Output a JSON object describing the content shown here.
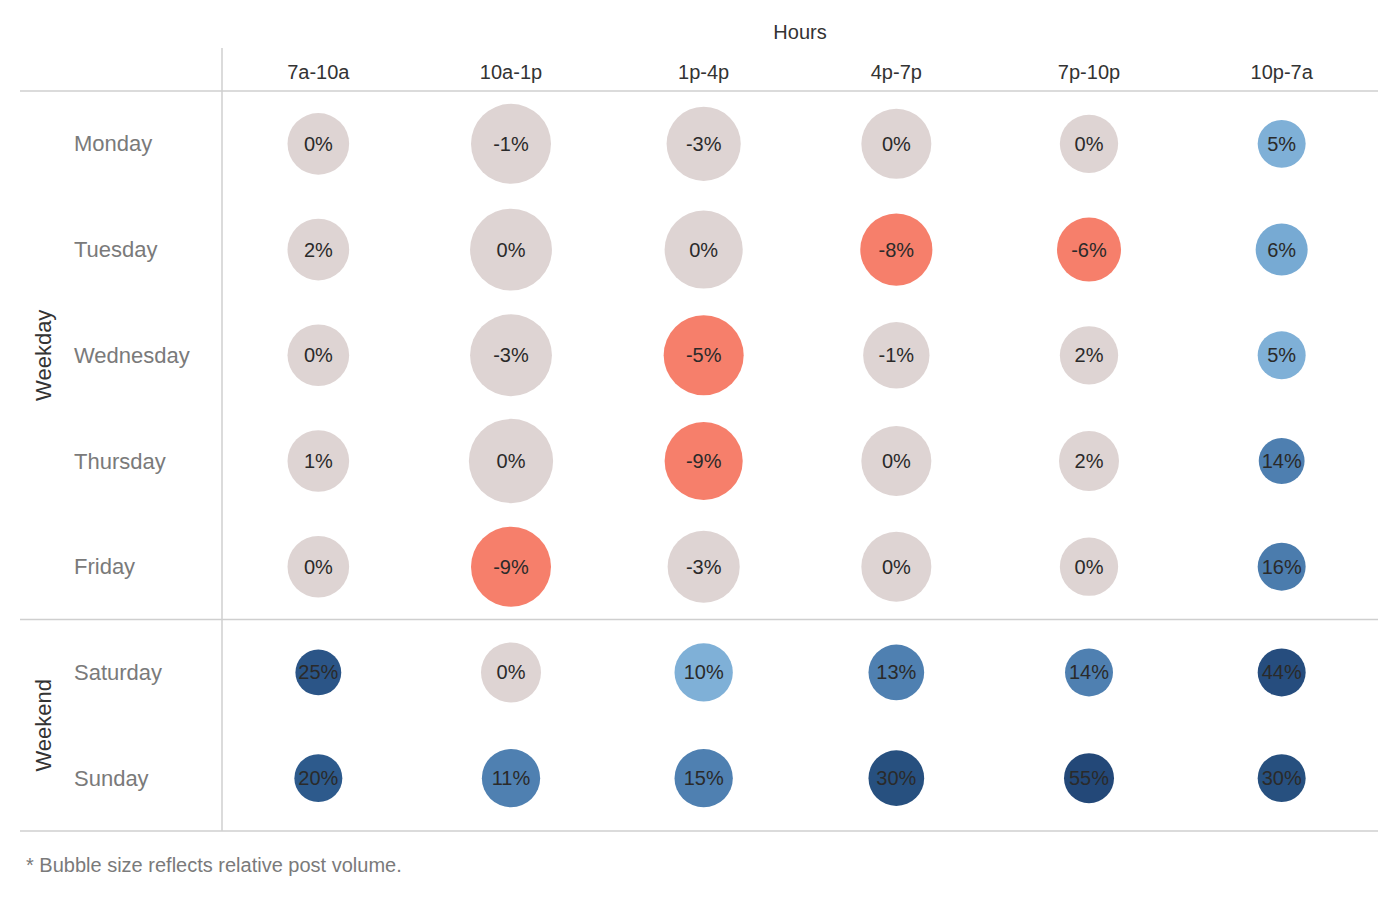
{
  "chart_data": {
    "type": "bubble_grid",
    "x_label": "Hours",
    "categories": [
      "7a-10a",
      "10a-1p",
      "1p-4p",
      "4p-7p",
      "7p-10p",
      "10p-7a"
    ],
    "row_groups": [
      {
        "name": "Weekday",
        "rows": [
          "Monday",
          "Tuesday",
          "Wednesday",
          "Thursday",
          "Friday"
        ]
      },
      {
        "name": "Weekend",
        "rows": [
          "Saturday",
          "Sunday"
        ]
      }
    ],
    "values": [
      [
        0,
        -1,
        -3,
        0,
        0,
        5
      ],
      [
        2,
        0,
        0,
        -8,
        -6,
        6
      ],
      [
        0,
        -3,
        -5,
        -1,
        2,
        5
      ],
      [
        1,
        0,
        -9,
        0,
        2,
        14
      ],
      [
        0,
        -9,
        -3,
        0,
        0,
        16
      ],
      [
        25,
        0,
        10,
        13,
        14,
        44
      ],
      [
        20,
        11,
        15,
        30,
        55,
        30
      ]
    ],
    "value_labels": [
      [
        "0%",
        "-1%",
        "-3%",
        "0%",
        "0%",
        "5%"
      ],
      [
        "2%",
        "0%",
        "0%",
        "-8%",
        "-6%",
        "6%"
      ],
      [
        "0%",
        "-3%",
        "-5%",
        "-1%",
        "2%",
        "5%"
      ],
      [
        "1%",
        "0%",
        "-9%",
        "0%",
        "2%",
        "14%"
      ],
      [
        "0%",
        "-9%",
        "-3%",
        "0%",
        "0%",
        "16%"
      ],
      [
        "25%",
        "0%",
        "10%",
        "13%",
        "14%",
        "44%"
      ],
      [
        "20%",
        "11%",
        "15%",
        "30%",
        "55%",
        "30%"
      ]
    ],
    "sizes": [
      [
        38,
        64,
        55,
        49,
        34,
        23
      ],
      [
        38,
        67,
        61,
        52,
        41,
        27
      ],
      [
        38,
        67,
        64,
        44,
        34,
        23
      ],
      [
        38,
        71,
        61,
        49,
        36,
        21
      ],
      [
        38,
        64,
        52,
        49,
        34,
        23
      ],
      [
        21,
        36,
        34,
        31,
        23,
        23
      ],
      [
        23,
        34,
        34,
        31,
        25,
        23
      ]
    ],
    "colors": [
      [
        "#ded4d3",
        "#ded4d3",
        "#ded4d3",
        "#ded4d3",
        "#ded4d3",
        "#7fb0d7"
      ],
      [
        "#ded4d3",
        "#ded4d3",
        "#ded4d3",
        "#f67f6b",
        "#f67f6b",
        "#77aad3"
      ],
      [
        "#ded4d3",
        "#ded4d3",
        "#f67f6b",
        "#ded4d3",
        "#ded4d3",
        "#7fb0d7"
      ],
      [
        "#ded4d3",
        "#ded4d3",
        "#f67f6b",
        "#ded4d3",
        "#ded4d3",
        "#4e7fb0"
      ],
      [
        "#ded4d3",
        "#f67f6b",
        "#ded4d3",
        "#ded4d3",
        "#ded4d3",
        "#4b7cad"
      ],
      [
        "#2b5587",
        "#ded4d3",
        "#7fb0d7",
        "#4f80b1",
        "#4f80b1",
        "#264d7e"
      ],
      [
        "#2d5a8c",
        "#4f80b1",
        "#4f80b1",
        "#27507f",
        "#234878",
        "#27507f"
      ]
    ],
    "data_labels": true,
    "footnote": "* Bubble size reflects relative post volume."
  }
}
